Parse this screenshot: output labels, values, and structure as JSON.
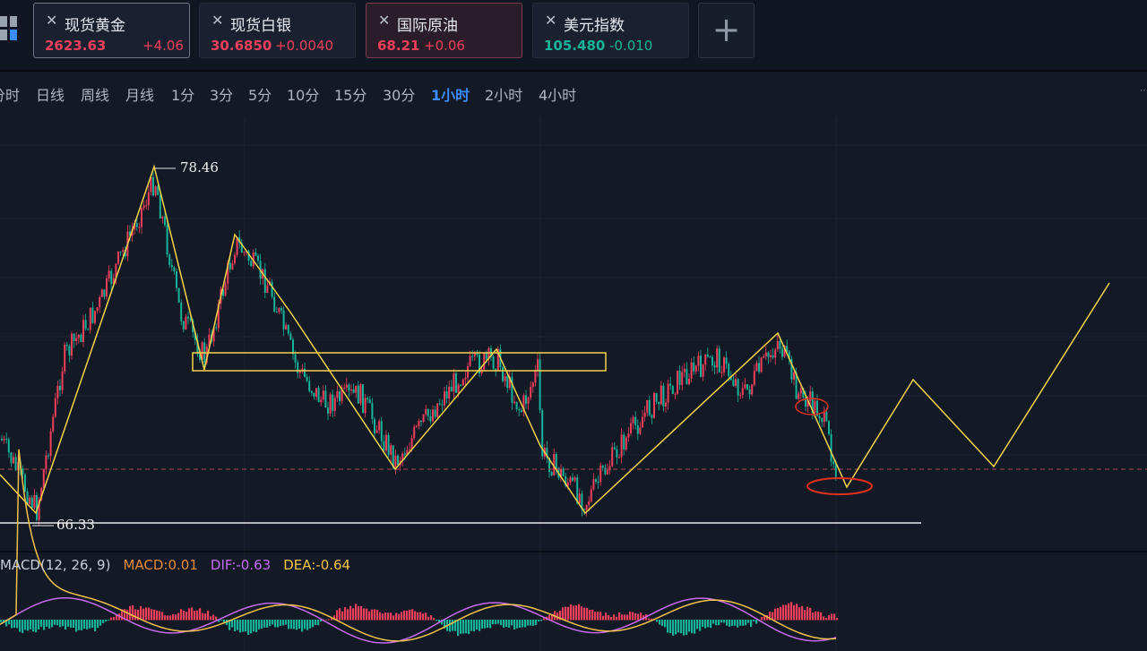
{
  "tabs": [
    {
      "name": "现货黄金",
      "price": "2623.63",
      "change": "+4.06",
      "direction": "up"
    },
    {
      "name": "现货白银",
      "price": "30.6850",
      "change": "+0.0040",
      "direction": "up"
    },
    {
      "name": "国际原油",
      "price": "68.21",
      "change": "+0.06",
      "direction": "up",
      "active": true
    },
    {
      "name": "美元指数",
      "price": "105.480",
      "change": "-0.010",
      "direction": "down"
    }
  ],
  "close_glyph": "✕",
  "add_tab_glyph": "+",
  "periods": [
    "分时",
    "日线",
    "周线",
    "月线",
    "1分",
    "3分",
    "5分",
    "10分",
    "15分",
    "30分",
    "1小时",
    "2小时",
    "4小时"
  ],
  "active_period": "1小时",
  "chart_labels": {
    "high": "78.46",
    "low": "66.33"
  },
  "macd": {
    "title": "MACD(12, 26, 9)",
    "macd": "MACD:0.01",
    "dif": "DIF:-0.63",
    "dea": "DEA:-0.64"
  },
  "colors": {
    "up": "#ef3f5a",
    "down": "#16b39a",
    "annotation": "#f2d34a",
    "circle": "#e0301e",
    "active_period": "#3b8cff",
    "macd_label": "#e08a3c",
    "dif": "#c66bf0",
    "dea": "#f2c24a"
  }
}
